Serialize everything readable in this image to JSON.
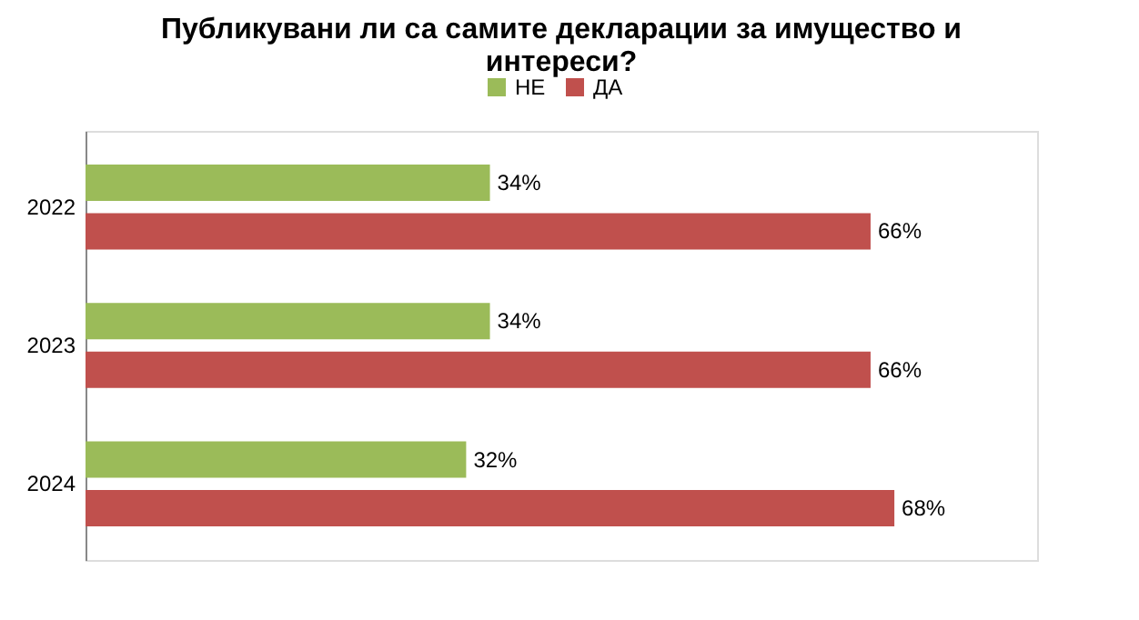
{
  "chart_data": {
    "type": "bar",
    "orientation": "horizontal",
    "title": "Публикувани ли са самите декларации за имущество и интереси?",
    "categories": [
      "2022",
      "2023",
      "2024"
    ],
    "series": [
      {
        "name": "НЕ",
        "color": "#9bbb59",
        "values": [
          34,
          34,
          32
        ],
        "value_labels": [
          "34%",
          "34%",
          "32%"
        ]
      },
      {
        "name": "ДА",
        "color": "#c0504d",
        "values": [
          66,
          66,
          68
        ],
        "value_labels": [
          "66%",
          "66%",
          "68%"
        ]
      }
    ],
    "xlim": [
      0,
      80
    ],
    "legend": "top",
    "tick_labels": "y"
  }
}
